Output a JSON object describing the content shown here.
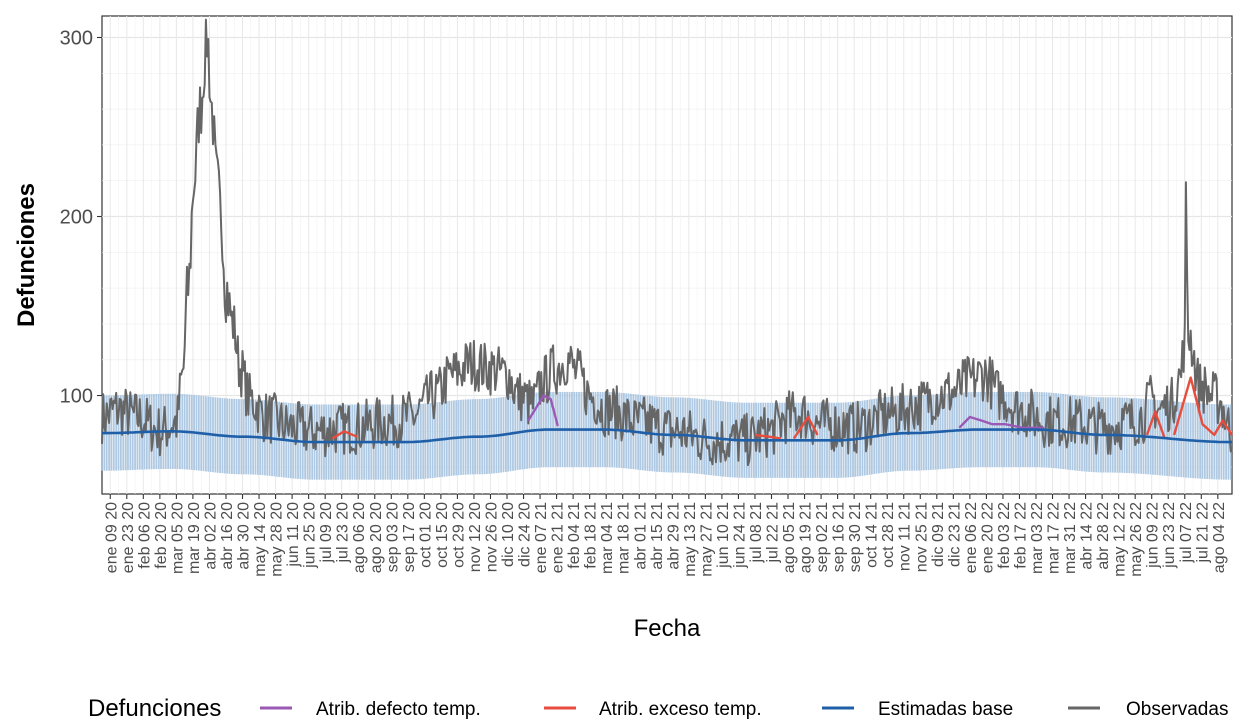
{
  "chart_data": {
    "type": "line",
    "xlabel": "Fecha",
    "ylabel": "Defunciones",
    "yticks": [
      100,
      200,
      300
    ],
    "ylim": [
      45,
      312
    ],
    "xlim": [
      "2020-01-02",
      "2022-08-16"
    ],
    "x_axis_type": "date",
    "x_tick_labels": [
      "ene 09 20",
      "ene 23 20",
      "feb 06 20",
      "feb 20 20",
      "mar 05 20",
      "mar 19 20",
      "abr 02 20",
      "abr 16 20",
      "abr 30 20",
      "may 14 20",
      "may 28 20",
      "jun 11 20",
      "jun 25 20",
      "jul 09 20",
      "jul 23 20",
      "ago 06 20",
      "ago 20 20",
      "sep 03 20",
      "sep 17 20",
      "oct 01 20",
      "oct 15 20",
      "oct 29 20",
      "nov 12 20",
      "nov 26 20",
      "dic 10 20",
      "dic 24 20",
      "ene 07 21",
      "ene 21 21",
      "feb 04 21",
      "feb 18 21",
      "mar 04 21",
      "mar 18 21",
      "abr 01 21",
      "abr 15 21",
      "abr 29 21",
      "may 13 21",
      "may 27 21",
      "jun 10 21",
      "jun 24 21",
      "jul 08 21",
      "jul 22 21",
      "ago 05 21",
      "ago 19 21",
      "sep 02 21",
      "sep 16 21",
      "sep 30 21",
      "oct 14 21",
      "oct 28 21",
      "nov 11 21",
      "nov 25 21",
      "dic 09 21",
      "dic 23 21",
      "ene 06 22",
      "ene 20 22",
      "feb 03 22",
      "feb 17 22",
      "mar 03 22",
      "mar 17 22",
      "mar 31 22",
      "abr 14 22",
      "abr 28 22",
      "may 12 22",
      "may 26 22",
      "jun 09 22",
      "jun 23 22",
      "jul 07 22",
      "jul 21 22",
      "ago 04 22"
    ],
    "grid": true,
    "legend_position": "bottom",
    "legend_title": "Defunciones",
    "series": [
      {
        "name": "Atrib. defecto temp.",
        "color": "#9b59b6"
      },
      {
        "name": "Atrib. exceso temp.",
        "color": "#e74c3c"
      },
      {
        "name": "Estimadas base",
        "color": "#1f5fa8"
      },
      {
        "name": "Observadas",
        "color": "#666666"
      }
    ],
    "band_color": "#a6c3e0",
    "observed_anchors": [
      [
        "2020-01-02",
        88
      ],
      [
        "2020-01-15",
        92
      ],
      [
        "2020-02-01",
        88
      ],
      [
        "2020-02-20",
        80
      ],
      [
        "2020-03-05",
        85
      ],
      [
        "2020-03-10",
        110
      ],
      [
        "2020-03-15",
        160
      ],
      [
        "2020-03-20",
        220
      ],
      [
        "2020-03-25",
        260
      ],
      [
        "2020-03-31",
        300
      ],
      [
        "2020-04-04",
        260
      ],
      [
        "2020-04-08",
        220
      ],
      [
        "2020-04-12",
        200
      ],
      [
        "2020-04-16",
        160
      ],
      [
        "2020-04-22",
        140
      ],
      [
        "2020-04-28",
        115
      ],
      [
        "2020-05-06",
        98
      ],
      [
        "2020-05-20",
        88
      ],
      [
        "2020-06-10",
        82
      ],
      [
        "2020-07-01",
        80
      ],
      [
        "2020-08-01",
        82
      ],
      [
        "2020-09-01",
        85
      ],
      [
        "2020-09-20",
        88
      ],
      [
        "2020-10-10",
        100
      ],
      [
        "2020-10-25",
        112
      ],
      [
        "2020-11-10",
        118
      ],
      [
        "2020-11-25",
        115
      ],
      [
        "2020-12-10",
        112
      ],
      [
        "2020-12-20",
        100
      ],
      [
        "2021-01-01",
        95
      ],
      [
        "2021-01-10",
        108
      ],
      [
        "2021-01-20",
        115
      ],
      [
        "2021-01-30",
        120
      ],
      [
        "2021-02-08",
        112
      ],
      [
        "2021-02-18",
        100
      ],
      [
        "2021-03-04",
        92
      ],
      [
        "2021-04-01",
        85
      ],
      [
        "2021-05-01",
        80
      ],
      [
        "2021-06-01",
        75
      ],
      [
        "2021-07-01",
        75
      ],
      [
        "2021-07-20",
        80
      ],
      [
        "2021-08-05",
        88
      ],
      [
        "2021-08-15",
        90
      ],
      [
        "2021-09-01",
        84
      ],
      [
        "2021-10-01",
        82
      ],
      [
        "2021-11-01",
        90
      ],
      [
        "2021-11-25",
        95
      ],
      [
        "2021-12-09",
        100
      ],
      [
        "2021-12-23",
        102
      ],
      [
        "2022-01-06",
        108
      ],
      [
        "2022-01-18",
        112
      ],
      [
        "2022-02-01",
        100
      ],
      [
        "2022-02-17",
        92
      ],
      [
        "2022-03-10",
        86
      ],
      [
        "2022-04-01",
        85
      ],
      [
        "2022-05-01",
        82
      ],
      [
        "2022-05-20",
        85
      ],
      [
        "2022-06-01",
        88
      ],
      [
        "2022-06-09",
        98
      ],
      [
        "2022-06-15",
        92
      ],
      [
        "2022-06-25",
        95
      ],
      [
        "2022-07-03",
        110
      ],
      [
        "2022-07-07",
        130
      ],
      [
        "2022-07-08",
        205
      ],
      [
        "2022-07-10",
        135
      ],
      [
        "2022-07-20",
        105
      ],
      [
        "2022-08-04",
        98
      ],
      [
        "2022-08-16",
        80
      ]
    ],
    "baseline_anchors": [
      [
        "2020-01-02",
        79
      ],
      [
        "2020-03-01",
        80
      ],
      [
        "2020-05-01",
        77
      ],
      [
        "2020-07-01",
        74
      ],
      [
        "2020-09-15",
        74
      ],
      [
        "2020-11-15",
        77
      ],
      [
        "2021-01-15",
        81
      ],
      [
        "2021-03-01",
        81
      ],
      [
        "2021-05-01",
        78
      ],
      [
        "2021-07-01",
        75
      ],
      [
        "2021-09-15",
        75
      ],
      [
        "2021-11-15",
        79
      ],
      [
        "2022-01-15",
        81
      ],
      [
        "2022-03-01",
        81
      ],
      [
        "2022-05-01",
        78
      ],
      [
        "2022-08-16",
        74
      ]
    ],
    "band_halfwidth": 21,
    "excess_segments": [
      [
        [
          "2020-07-15",
          76
        ],
        [
          "2020-07-25",
          80
        ],
        [
          "2020-08-05",
          77
        ]
      ],
      [
        [
          "2021-07-08",
          78
        ],
        [
          "2021-07-20",
          77
        ],
        [
          "2021-07-30",
          76
        ]
      ],
      [
        [
          "2021-08-10",
          76
        ],
        [
          "2021-08-22",
          88
        ],
        [
          "2021-08-30",
          78
        ]
      ],
      [
        [
          "2022-06-05",
          78
        ],
        [
          "2022-06-12",
          91
        ],
        [
          "2022-06-20",
          76
        ]
      ],
      [
        [
          "2022-06-28",
          78
        ],
        [
          "2022-07-12",
          110
        ],
        [
          "2022-07-22",
          84
        ],
        [
          "2022-08-01",
          78
        ],
        [
          "2022-08-08",
          86
        ],
        [
          "2022-08-16",
          78
        ]
      ]
    ],
    "deficit_segments": [
      [
        [
          "2020-12-28",
          86
        ],
        [
          "2021-01-10",
          100
        ],
        [
          "2021-01-16",
          98
        ],
        [
          "2021-01-22",
          83
        ]
      ],
      [
        [
          "2021-12-28",
          82
        ],
        [
          "2022-01-06",
          88
        ],
        [
          "2022-01-16",
          86
        ],
        [
          "2022-01-25",
          84
        ],
        [
          "2022-02-05",
          84
        ],
        [
          "2022-02-20",
          82
        ],
        [
          "2022-03-10",
          82
        ]
      ]
    ]
  }
}
